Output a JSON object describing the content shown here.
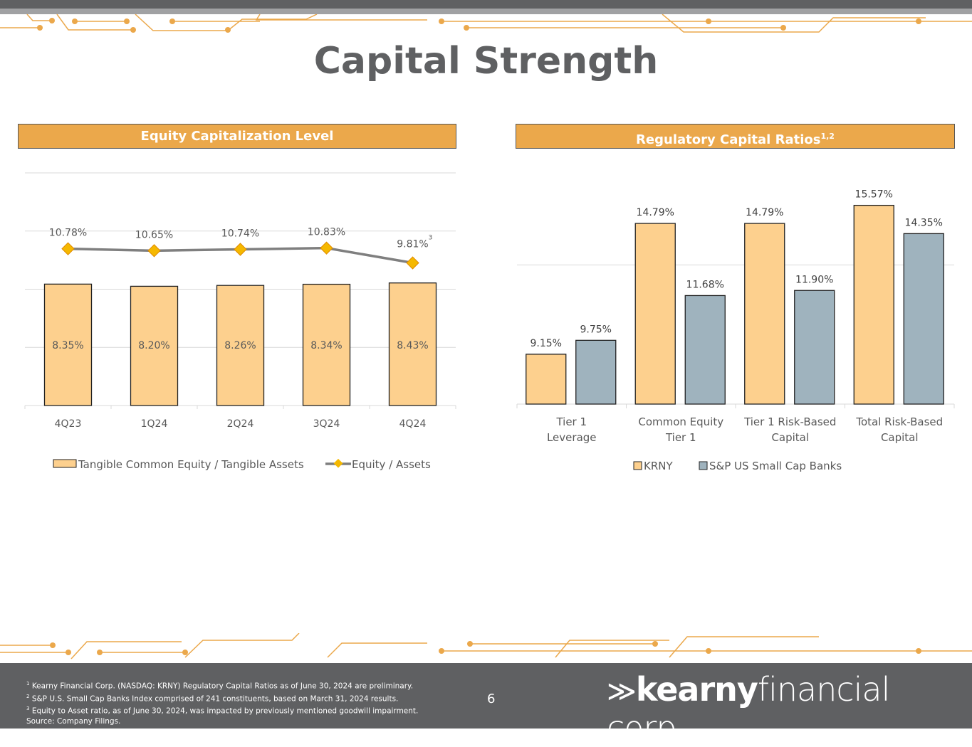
{
  "title": "Capital Strength",
  "left_header": "Equity Capitalization Level",
  "right_header": {
    "text": "Regulatory Capital Ratios",
    "sup": "1,2"
  },
  "chart_data": [
    {
      "type": "bar",
      "categories": [
        "4Q23",
        "1Q24",
        "2Q24",
        "3Q24",
        "4Q24"
      ],
      "series": [
        {
          "name": "Tangible Common Equity / Tangible Assets",
          "type": "bar",
          "values": [
            8.35,
            8.2,
            8.26,
            8.34,
            8.43
          ],
          "labels": [
            "8.35%",
            "8.20%",
            "8.26%",
            "8.34%",
            "8.43%"
          ]
        },
        {
          "name": "Equity / Assets",
          "type": "line",
          "values": [
            10.78,
            10.65,
            10.74,
            10.83,
            9.81
          ],
          "labels": [
            "10.78%",
            "10.65%",
            "10.74%",
            "10.83%",
            "9.81%"
          ]
        }
      ],
      "annotation": "3",
      "ylim": [
        0,
        16
      ],
      "grid": true,
      "legend": "bottom",
      "colors": {
        "bar": "#fdd08e",
        "line": "#7f7f7f",
        "marker": "#f5b800"
      }
    },
    {
      "type": "bar",
      "categories": [
        [
          "Tier 1",
          "Leverage"
        ],
        [
          "Common Equity",
          "Tier 1"
        ],
        [
          "Tier 1 Risk-Based",
          "Capital"
        ],
        [
          "Total Risk-Based",
          "Capital"
        ]
      ],
      "series": [
        {
          "name": "KRNY",
          "values": [
            9.15,
            14.79,
            14.79,
            15.57
          ],
          "labels": [
            "9.15%",
            "14.79%",
            "14.79%",
            "15.57%"
          ]
        },
        {
          "name": "S&P US Small Cap Banks",
          "values": [
            9.75,
            11.68,
            11.9,
            14.35
          ],
          "labels": [
            "9.75%",
            "11.68%",
            "11.90%",
            "14.35%"
          ]
        }
      ],
      "ylim": [
        7,
        19
      ],
      "grid": true,
      "legend": "bottom",
      "colors": {
        "KRNY": "#fdd08e",
        "S&P US Small Cap Banks": "#9fb3be"
      }
    }
  ],
  "footer": {
    "notes": [
      {
        "sup": "1",
        "text": "Kearny Financial Corp. (NASDAQ: KRNY) Regulatory Capital Ratios as of June 30, 2024 are preliminary."
      },
      {
        "sup": "2",
        "text": "S&P U.S. Small Cap Banks Index comprised of 241 constituents, based on March 31, 2024 results."
      },
      {
        "sup": "3",
        "text": "Equity to Asset ratio, as of June 30, 2024, was impacted by previously mentioned goodwill impairment."
      },
      {
        "sup": "",
        "text": "Source: Company Filings."
      }
    ],
    "page": "6",
    "logo": "kearny financial corp."
  }
}
